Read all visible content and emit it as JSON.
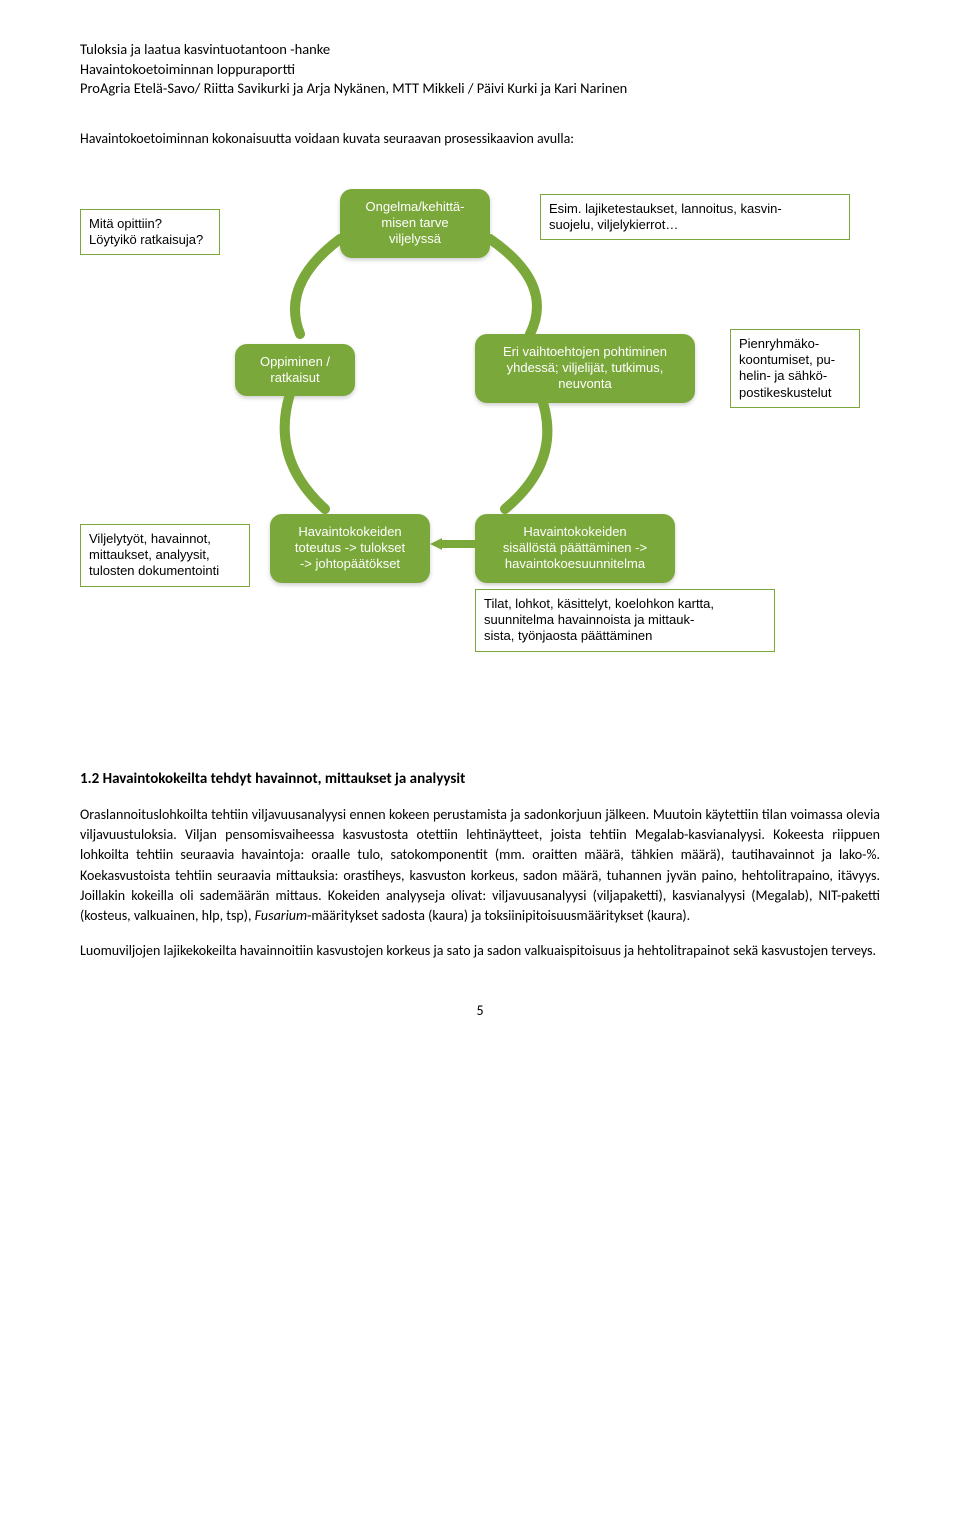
{
  "header": {
    "line1": "Tuloksia ja laatua kasvintuotantoon -hanke",
    "line2": "Havaintokoetoiminnan loppuraportti",
    "line3": "ProAgria Etelä-Savo/ Riitta Savikurki ja Arja Nykänen, MTT Mikkeli / Päivi Kurki ja Kari Narinen"
  },
  "intro": "Havaintokoetoiminnan kokonaisuutta voidaan kuvata seuraavan prosessikaavion avulla:",
  "diagram": {
    "colors": {
      "green": "#7ba83a",
      "white": "#ffffff",
      "black": "#000000"
    },
    "box_left1": "Mitä opittiin?\nLöytyikö ratkaisuja?",
    "pill_top": "Ongelma/kehittä-\nmisen tarve\nviljelyssä",
    "box_right1": "Esim. lajiketestaukset, lannoitus, kasvin-\nsuojelu, viljelykierrot…",
    "pill_left": "Oppiminen /\nratkaisut",
    "pill_right": "Eri vaihtoehtojen pohtiminen\nyhdessä; viljelijät, tutkimus,\nneuvonta",
    "box_right2": "Pienryhmäko-\nkoontumiset, pu-\nhelin- ja sähkö-\npostikeskustelut",
    "box_left2": "Viljelytyöt, havainnot,\nmittaukset, analyysit,\ntulosten dokumentointi",
    "pill_bl": "Havaintokokeiden\ntoteutus -> tulokset\n-> johtopäätökset",
    "pill_br": "Havaintokokeiden\nsisällöstä päättäminen ->\nhavaintokoesuunnitelma",
    "box_bottom": "Tilat, lohkot, käsittelyt, koelohkon kartta,\nsuunnitelma havainnoista ja mittauk-\nsista, työnjaosta päättäminen"
  },
  "section": {
    "heading": "1.2 Havaintokokeilta tehdyt havainnot, mittaukset ja analyysit",
    "p1a": "Oraslannoituslohkoilta tehtiin viljavuusanalyysi ennen kokeen perustamista ja sadonkorjuun jälkeen. Muutoin käytettiin tilan voimassa olevia viljavuustuloksia. Viljan pensomisvaiheessa kasvustosta otettiin lehtinäytteet, joista tehtiin Megalab-kasvianalyysi. Kokeesta riippuen lohkoilta tehtiin seuraavia havaintoja: oraalle tulo, satokomponentit (mm. oraitten määrä, tähkien määrä), tautihavainnot ja lako-%. Koekasvustoista tehtiin seuraavia mittauksia: orastiheys, kasvuston korkeus, sadon määrä, tuhannen jyvän paino, hehtolitrapaino, itävyys. Joillakin kokeilla oli sademäärän mittaus. Kokeiden analyyseja olivat: viljavuusanalyysi (viljapaketti), kasvianalyysi (Megalab), NIT-paketti (kosteus, valkuainen, hlp, tsp), ",
    "p1_italic": "Fusarium",
    "p1b": "-määritykset sadosta (kaura) ja toksiinipitoisuusmääritykset (kaura).",
    "p2": "Luomuviljojen lajikekokeilta havainnoitiin kasvustojen korkeus ja sato ja sadon valkuaispitoisuus ja hehtolitrapainot sekä kasvustojen terveys."
  },
  "pagenum": "5"
}
